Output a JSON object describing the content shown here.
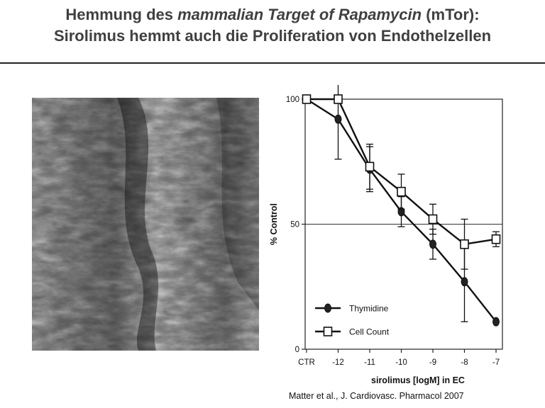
{
  "title": {
    "line1_pre": "Hemmung des ",
    "line1_italic": "mammalian Target of Rapamycin",
    "line1_post": " (mTor):",
    "line2": "Sirolimus hemmt auch die Proliferation von Endothelzellen"
  },
  "image": {
    "description_icon": "sem-micrograph-icon"
  },
  "citation": "Matter et al., J. Cardiovasc. Pharmacol 2007",
  "chart_data": {
    "type": "line",
    "categories": [
      "CTR",
      "-12",
      "-11",
      "-10",
      "-9",
      "-8",
      "-7"
    ],
    "xlabel": "sirolimus [logM] in EC",
    "ylabel": "% Control",
    "ylim": [
      0,
      100
    ],
    "yticks": [
      0,
      50,
      100
    ],
    "reference_line": 50,
    "legend_position": "bottom-left",
    "series": [
      {
        "name": "Thymidine",
        "marker": "filled-circle",
        "values": [
          100,
          92,
          72,
          55,
          42,
          27,
          11
        ],
        "errors": [
          0,
          16,
          9,
          6,
          6,
          16,
          0
        ]
      },
      {
        "name": "Cell Count",
        "marker": "open-square",
        "values": [
          100,
          100,
          73,
          63,
          52,
          42,
          44
        ],
        "errors": [
          0,
          0,
          9,
          7,
          6,
          10,
          3
        ]
      }
    ]
  }
}
